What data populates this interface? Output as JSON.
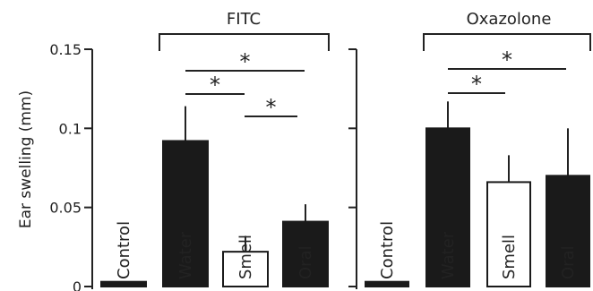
{
  "chart_data": {
    "type": "bar",
    "ylabel": "Ear swelling (mm)",
    "ylim": [
      0,
      0.15
    ],
    "yticks": [
      "0",
      "0.05",
      "0.1",
      "0.15"
    ],
    "y_tick_values": [
      0,
      0.05,
      0.1,
      0.15
    ],
    "panels": [
      {
        "title": "FITC",
        "categories": [
          "Control",
          "Water",
          "Smell",
          "Oral"
        ],
        "values": [
          0.003,
          0.092,
          0.022,
          0.041
        ],
        "errors": [
          0.0,
          0.022,
          0.01,
          0.011
        ],
        "fills": [
          "#1a1a1a",
          "#1a1a1a",
          "#ffffff",
          "#1a1a1a"
        ],
        "significance": [
          {
            "from": "Water",
            "to": "Oral",
            "label": "",
            "kind": "bracket"
          },
          {
            "from": "Water",
            "to": "Oral",
            "label": "*",
            "kind": "line"
          },
          {
            "from": "Water",
            "to": "Smell",
            "label": "*",
            "kind": "line"
          },
          {
            "from": "Smell",
            "to": "Oral",
            "label": "*",
            "kind": "line"
          }
        ]
      },
      {
        "title": "Oxazolone",
        "categories": [
          "Control",
          "Water",
          "Smell",
          "Oral"
        ],
        "values": [
          0.003,
          0.1,
          0.066,
          0.07
        ],
        "errors": [
          0.0,
          0.017,
          0.017,
          0.03
        ],
        "fills": [
          "#1a1a1a",
          "#1a1a1a",
          "#ffffff",
          "#1a1a1a"
        ],
        "significance": [
          {
            "from": "Water",
            "to": "Oral",
            "label": "",
            "kind": "bracket"
          },
          {
            "from": "Water",
            "to": "Oral",
            "label": "*",
            "kind": "line"
          },
          {
            "from": "Water",
            "to": "Smell",
            "label": "*",
            "kind": "line"
          }
        ]
      }
    ]
  },
  "style": {
    "bar_dark": "#1a1a1a",
    "bar_light": "#ffffff",
    "axis_color": "#222222",
    "label_on_dark": "#ffffff",
    "label_on_light": "#1a1a1a"
  }
}
